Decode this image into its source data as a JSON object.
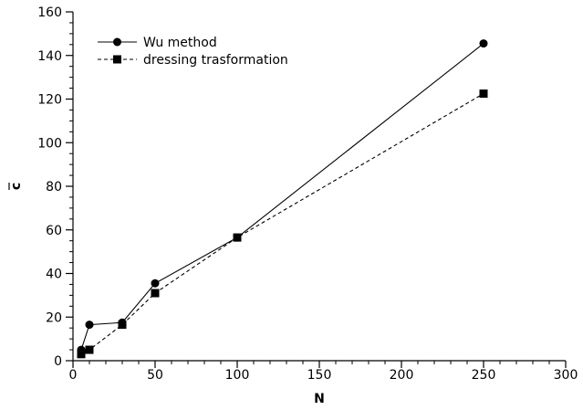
{
  "chart_data": {
    "type": "line",
    "title": "",
    "xlabel": "N",
    "ylabel": "c",
    "ylabel_overbar": true,
    "xlim": [
      0,
      300
    ],
    "ylim": [
      0,
      160
    ],
    "x_major_ticks": [
      0,
      50,
      100,
      150,
      200,
      250,
      300
    ],
    "x_minor_step": 10,
    "y_major_ticks": [
      0,
      20,
      40,
      60,
      80,
      100,
      120,
      140,
      160
    ],
    "y_minor_step": 5,
    "grid": false,
    "legend_position": "top-left",
    "series": [
      {
        "name": "Wu method",
        "marker": "circle",
        "line_style": "solid",
        "color": "#000000",
        "x": [
          5,
          10,
          30,
          50,
          100,
          250
        ],
        "y": [
          5,
          16.5,
          17.5,
          35.5,
          56.5,
          145.5
        ]
      },
      {
        "name": "dressing trasformation",
        "marker": "square",
        "line_style": "dashed",
        "color": "#000000",
        "x": [
          5,
          10,
          30,
          50,
          100,
          250
        ],
        "y": [
          3,
          5,
          16.5,
          31,
          56.5,
          122.5
        ]
      }
    ]
  }
}
